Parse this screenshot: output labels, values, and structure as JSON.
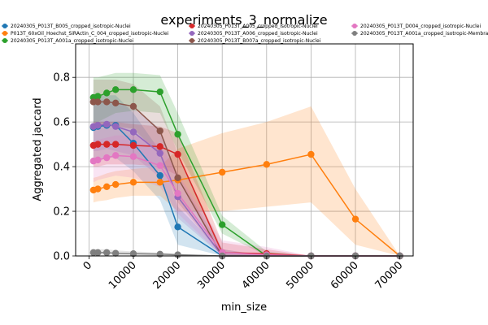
{
  "chart_data": {
    "type": "line",
    "title": "experiments_3_normalize",
    "xlabel": "min_size",
    "ylabel": "Aggregated jaccard",
    "xlim": [
      -3000,
      73000
    ],
    "ylim": [
      0,
      0.95
    ],
    "x_ticks": [
      0,
      10000,
      20000,
      30000,
      40000,
      50000,
      60000,
      70000
    ],
    "x_tick_labels": [
      "0",
      "10000",
      "20000",
      "30000",
      "40000",
      "50000",
      "60000",
      "70000"
    ],
    "y_ticks": [
      0,
      0.2,
      0.4,
      0.6,
      0.8
    ],
    "y_tick_labels": [
      "0.0",
      "0.2",
      "0.4",
      "0.6",
      "0.8"
    ],
    "grid": true,
    "legend_placement": "top",
    "series": [
      {
        "name": "20240305_P013T_B005_cropped_isotropic-Nuclei",
        "color": "#1f77b4",
        "x": [
          1000,
          2000,
          4000,
          6000,
          10000,
          16000,
          20000,
          30000,
          40000,
          50000,
          60000,
          70000
        ],
        "y": [
          0.575,
          0.58,
          0.585,
          0.585,
          0.505,
          0.36,
          0.13,
          0.0,
          0.0,
          0.0,
          0.0,
          0.0
        ],
        "lower": [
          0.42,
          0.43,
          0.44,
          0.44,
          0.38,
          0.25,
          0.05,
          0.0,
          0.0,
          0.0,
          0.0,
          0.0
        ],
        "upper": [
          0.72,
          0.72,
          0.72,
          0.72,
          0.64,
          0.47,
          0.22,
          0.02,
          0.0,
          0.0,
          0.0,
          0.0
        ]
      },
      {
        "name": "P013T_60xOil_Hoechst_SiRActin_C_004_cropped_isotropic-Nuclei",
        "color": "#ff7f0e",
        "x": [
          1000,
          2000,
          4000,
          6000,
          10000,
          16000,
          20000,
          30000,
          40000,
          50000,
          60000,
          70000
        ],
        "y": [
          0.295,
          0.3,
          0.31,
          0.32,
          0.33,
          0.33,
          0.34,
          0.375,
          0.41,
          0.455,
          0.165,
          0.0
        ],
        "lower": [
          0.24,
          0.245,
          0.25,
          0.26,
          0.27,
          0.27,
          0.2,
          0.2,
          0.22,
          0.24,
          0.05,
          0.0
        ],
        "upper": [
          0.35,
          0.355,
          0.37,
          0.38,
          0.39,
          0.4,
          0.48,
          0.55,
          0.6,
          0.67,
          0.3,
          0.0
        ]
      },
      {
        "name": "20240305_P013T_A001a_cropped_isotropic-Nuclei",
        "color": "#2ca02c",
        "x": [
          1000,
          2000,
          4000,
          6000,
          10000,
          16000,
          20000,
          30000,
          40000,
          50000,
          60000,
          70000
        ],
        "y": [
          0.71,
          0.715,
          0.73,
          0.745,
          0.745,
          0.735,
          0.545,
          0.14,
          0.0,
          0.0,
          0.0,
          0.0
        ],
        "lower": [
          0.6,
          0.6,
          0.62,
          0.64,
          0.65,
          0.64,
          0.47,
          0.1,
          0.0,
          0.0,
          0.0,
          0.0
        ],
        "upper": [
          0.8,
          0.8,
          0.81,
          0.82,
          0.82,
          0.81,
          0.64,
          0.18,
          0.02,
          0.0,
          0.0,
          0.0
        ]
      },
      {
        "name": "20240305_P013T_A005_cropped_isotropic-Nuclei",
        "color": "#d62728",
        "x": [
          1000,
          2000,
          4000,
          6000,
          10000,
          16000,
          20000,
          30000,
          40000,
          50000,
          60000,
          70000
        ],
        "y": [
          0.495,
          0.5,
          0.5,
          0.5,
          0.495,
          0.49,
          0.455,
          0.015,
          0.01,
          0.0,
          0.0,
          0.0
        ],
        "lower": [
          0.4,
          0.4,
          0.41,
          0.41,
          0.41,
          0.4,
          0.36,
          0.0,
          0.0,
          0.0,
          0.0,
          0.0
        ],
        "upper": [
          0.6,
          0.6,
          0.6,
          0.6,
          0.59,
          0.58,
          0.55,
          0.06,
          0.03,
          0.0,
          0.0,
          0.0
        ]
      },
      {
        "name": "20240305_P013T_A006_cropped_isotropic-Nuclei",
        "color": "#9467bd",
        "x": [
          1000,
          2000,
          4000,
          6000,
          10000,
          16000,
          20000,
          30000,
          40000,
          50000,
          60000,
          70000
        ],
        "y": [
          0.58,
          0.585,
          0.59,
          0.58,
          0.555,
          0.46,
          0.265,
          0.0,
          0.0,
          0.0,
          0.0,
          0.0
        ],
        "lower": [
          0.47,
          0.47,
          0.48,
          0.47,
          0.45,
          0.35,
          0.17,
          0.0,
          0.0,
          0.0,
          0.0,
          0.0
        ],
        "upper": [
          0.69,
          0.7,
          0.7,
          0.69,
          0.66,
          0.57,
          0.36,
          0.03,
          0.0,
          0.0,
          0.0,
          0.0
        ]
      },
      {
        "name": "20240305_P013T_B007a_cropped_isotropic-Nuclei",
        "color": "#8c564b",
        "x": [
          1000,
          2000,
          4000,
          6000,
          10000,
          16000,
          20000,
          30000,
          40000,
          50000,
          60000,
          70000
        ],
        "y": [
          0.69,
          0.69,
          0.69,
          0.685,
          0.67,
          0.56,
          0.35,
          0.0,
          0.0,
          0.0,
          0.0,
          0.0
        ],
        "lower": [
          0.58,
          0.58,
          0.58,
          0.58,
          0.57,
          0.45,
          0.24,
          0.0,
          0.0,
          0.0,
          0.0,
          0.0
        ],
        "upper": [
          0.79,
          0.79,
          0.79,
          0.79,
          0.77,
          0.67,
          0.46,
          0.03,
          0.0,
          0.0,
          0.0,
          0.0
        ]
      },
      {
        "name": "20240305_P013T_D004_cropped_isotropic-Nuclei",
        "color": "#e377c2",
        "x": [
          1000,
          2000,
          4000,
          6000,
          10000,
          16000,
          20000,
          30000,
          40000,
          50000,
          60000,
          70000
        ],
        "y": [
          0.425,
          0.43,
          0.44,
          0.45,
          0.445,
          0.405,
          0.28,
          0.015,
          0.005,
          0.0,
          0.0,
          0.0
        ],
        "lower": [
          0.33,
          0.34,
          0.35,
          0.36,
          0.35,
          0.31,
          0.19,
          0.0,
          0.0,
          0.0,
          0.0,
          0.0
        ],
        "upper": [
          0.52,
          0.52,
          0.53,
          0.54,
          0.54,
          0.5,
          0.37,
          0.07,
          0.04,
          0.0,
          0.0,
          0.0
        ]
      },
      {
        "name": "20240305_P013T_A001a_cropped_isotropic-Membrane",
        "color": "#7f7f7f",
        "x": [
          1000,
          2000,
          4000,
          6000,
          10000,
          16000,
          20000,
          30000,
          40000,
          50000,
          60000,
          70000
        ],
        "y": [
          0.015,
          0.015,
          0.015,
          0.012,
          0.01,
          0.008,
          0.005,
          0.0,
          0.0,
          0.0,
          0.0,
          0.0
        ],
        "lower": [
          0.005,
          0.005,
          0.005,
          0.004,
          0.003,
          0.002,
          0.0,
          0.0,
          0.0,
          0.0,
          0.0,
          0.0
        ],
        "upper": [
          0.03,
          0.03,
          0.03,
          0.025,
          0.02,
          0.015,
          0.01,
          0.0,
          0.0,
          0.0,
          0.0,
          0.0
        ]
      }
    ]
  }
}
